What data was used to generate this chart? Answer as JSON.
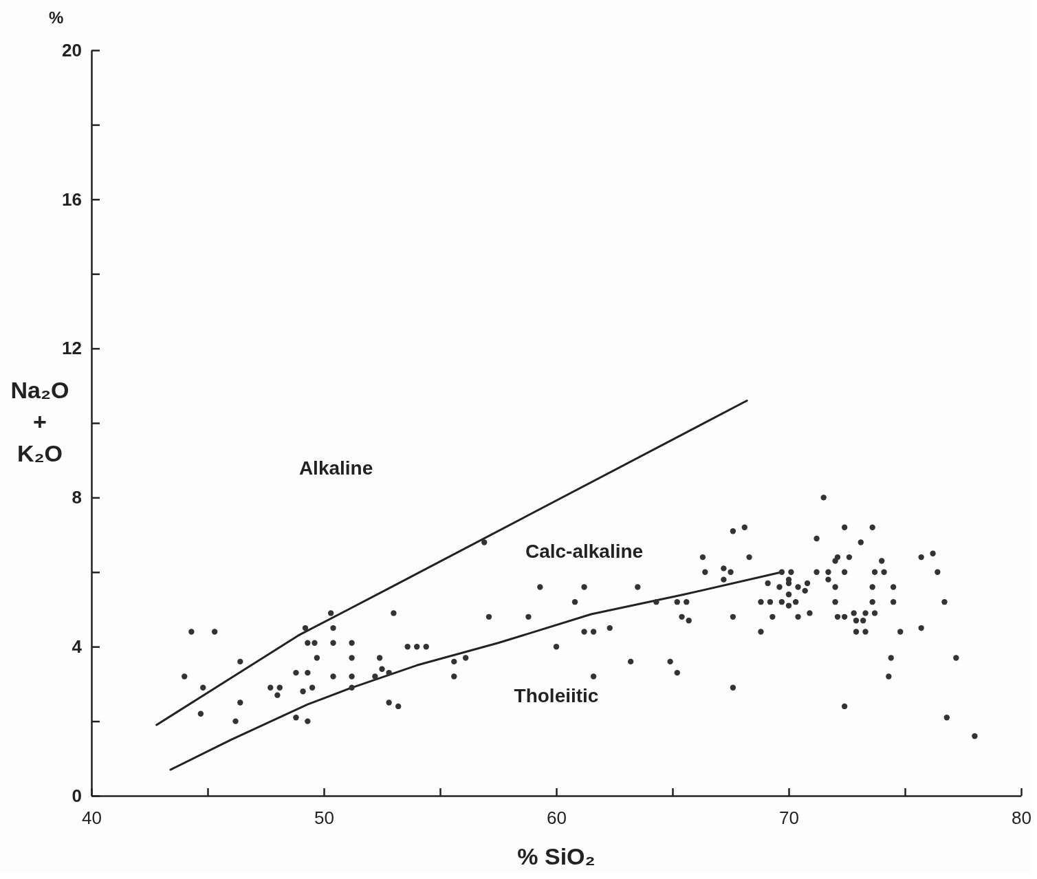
{
  "chart_data": {
    "type": "scatter",
    "xlabel": "% SiO₂",
    "ylabel": "Na₂O + K₂O",
    "xlim": [
      40,
      80
    ],
    "ylim": [
      0,
      20
    ],
    "xticks": [
      40,
      {
        "value": 45,
        "label": null
      },
      50,
      {
        "value": 55,
        "label": null
      },
      60,
      {
        "value": 65,
        "label": null
      },
      70,
      {
        "value": 75,
        "label": null
      },
      80
    ],
    "yticks": [
      0,
      {
        "value": 2,
        "label": null
      },
      4,
      {
        "value": 6,
        "label": null
      },
      8,
      {
        "value": 10,
        "label": null
      },
      12,
      {
        "value": 14,
        "label": null
      },
      16,
      {
        "value": 18,
        "label": null
      },
      20
    ],
    "grid": false,
    "marker": "circle",
    "annotations": [
      "%",
      "Alkaline",
      "Calc-alkaline",
      "Tholeiitic"
    ],
    "series": [
      {
        "type": "line",
        "color": "#222222",
        "marker": "none",
        "x": [
          42.8,
          48.9,
          52.6,
          68.2
        ],
        "values": [
          1.9,
          4.3,
          5.5,
          10.6
        ]
      },
      {
        "type": "line",
        "color": "#222222",
        "marker": "none",
        "x": [
          43.4,
          46,
          49.3,
          51.2,
          54,
          57.5,
          61.5,
          65.5,
          69.7
        ],
        "values": [
          0.7,
          1.5,
          2.45,
          2.9,
          3.5,
          4.1,
          4.87,
          5.4,
          6.0
        ]
      },
      {
        "color": "#333333",
        "x": [
          44.3,
          45.3,
          46.4,
          44.0,
          44.8,
          46.4,
          44.7,
          46.2,
          49.2,
          50.3,
          50.4,
          49.3,
          49.6,
          50.4,
          51.2,
          49.7,
          51.2,
          52.4,
          53.0,
          53.6,
          54.0,
          54.4,
          48.8,
          49.3,
          50.4,
          51.2,
          52.2,
          52.5,
          52.8,
          47.7,
          48.1,
          48.0,
          49.1,
          49.5,
          51.2,
          52.8,
          53.2,
          48.8,
          49.3,
          56.9,
          59.3,
          61.2,
          63.5,
          60.8,
          64.3,
          65.2,
          65.6,
          65.4,
          65.7,
          67.6,
          68.8,
          69.1,
          68.8,
          57.1,
          58.8,
          61.2,
          61.6,
          62.3,
          60.0,
          55.6,
          56.1,
          55.6,
          63.2,
          64.9,
          61.6,
          65.2,
          67.6,
          66.3,
          68.3,
          66.4,
          67.2,
          67.5,
          67.2,
          68.1,
          67.6,
          71.2,
          72.4,
          73.6,
          73.1,
          72.1,
          72.6,
          72.0,
          74.0,
          75.7,
          76.2,
          76.4,
          69.7,
          70.1,
          71.2,
          71.7,
          72.4,
          73.7,
          74.1,
          70.0,
          71.7,
          70.0,
          70.8,
          69.6,
          70.4,
          70.7,
          70.0,
          72.0,
          73.6,
          74.5,
          69.2,
          69.7,
          70.0,
          70.3,
          72.0,
          73.6,
          74.5,
          76.7,
          69.3,
          70.4,
          70.9,
          72.1,
          72.4,
          72.8,
          73.3,
          72.9,
          73.2,
          73.7,
          72.9,
          73.3,
          74.8,
          75.7,
          74.4,
          77.2,
          74.3,
          72.4,
          76.8,
          78.0,
          71.5
        ],
        "values": [
          4.4,
          4.4,
          3.6,
          3.2,
          2.9,
          2.5,
          2.2,
          2.0,
          4.5,
          4.9,
          4.5,
          4.1,
          4.1,
          4.1,
          4.1,
          3.7,
          3.7,
          3.7,
          4.9,
          4.0,
          4.0,
          4.0,
          3.3,
          3.3,
          3.2,
          3.2,
          3.2,
          3.4,
          3.3,
          2.9,
          2.9,
          2.7,
          2.8,
          2.9,
          2.9,
          2.5,
          2.4,
          2.1,
          2.0,
          6.8,
          5.6,
          5.6,
          5.6,
          5.2,
          5.2,
          5.2,
          5.2,
          4.8,
          4.7,
          4.8,
          5.2,
          5.7,
          4.4,
          4.8,
          4.8,
          4.4,
          4.4,
          4.5,
          4.0,
          3.6,
          3.7,
          3.2,
          3.6,
          3.6,
          3.2,
          3.3,
          2.9,
          6.4,
          6.4,
          6.0,
          6.1,
          6.0,
          5.8,
          7.2,
          7.1,
          6.9,
          7.2,
          7.2,
          6.8,
          6.4,
          6.4,
          6.3,
          6.3,
          6.4,
          6.5,
          6.0,
          6.0,
          6.0,
          6.0,
          6.0,
          6.0,
          6.0,
          6.0,
          5.8,
          5.8,
          5.7,
          5.7,
          5.6,
          5.6,
          5.5,
          5.4,
          5.6,
          5.6,
          5.6,
          5.2,
          5.2,
          5.1,
          5.2,
          5.2,
          5.2,
          5.2,
          5.2,
          4.8,
          4.8,
          4.9,
          4.8,
          4.8,
          4.9,
          4.9,
          4.7,
          4.7,
          4.9,
          4.4,
          4.4,
          4.4,
          4.5,
          3.7,
          3.7,
          3.2,
          2.4,
          2.1,
          1.6,
          8.0
        ]
      }
    ]
  }
}
